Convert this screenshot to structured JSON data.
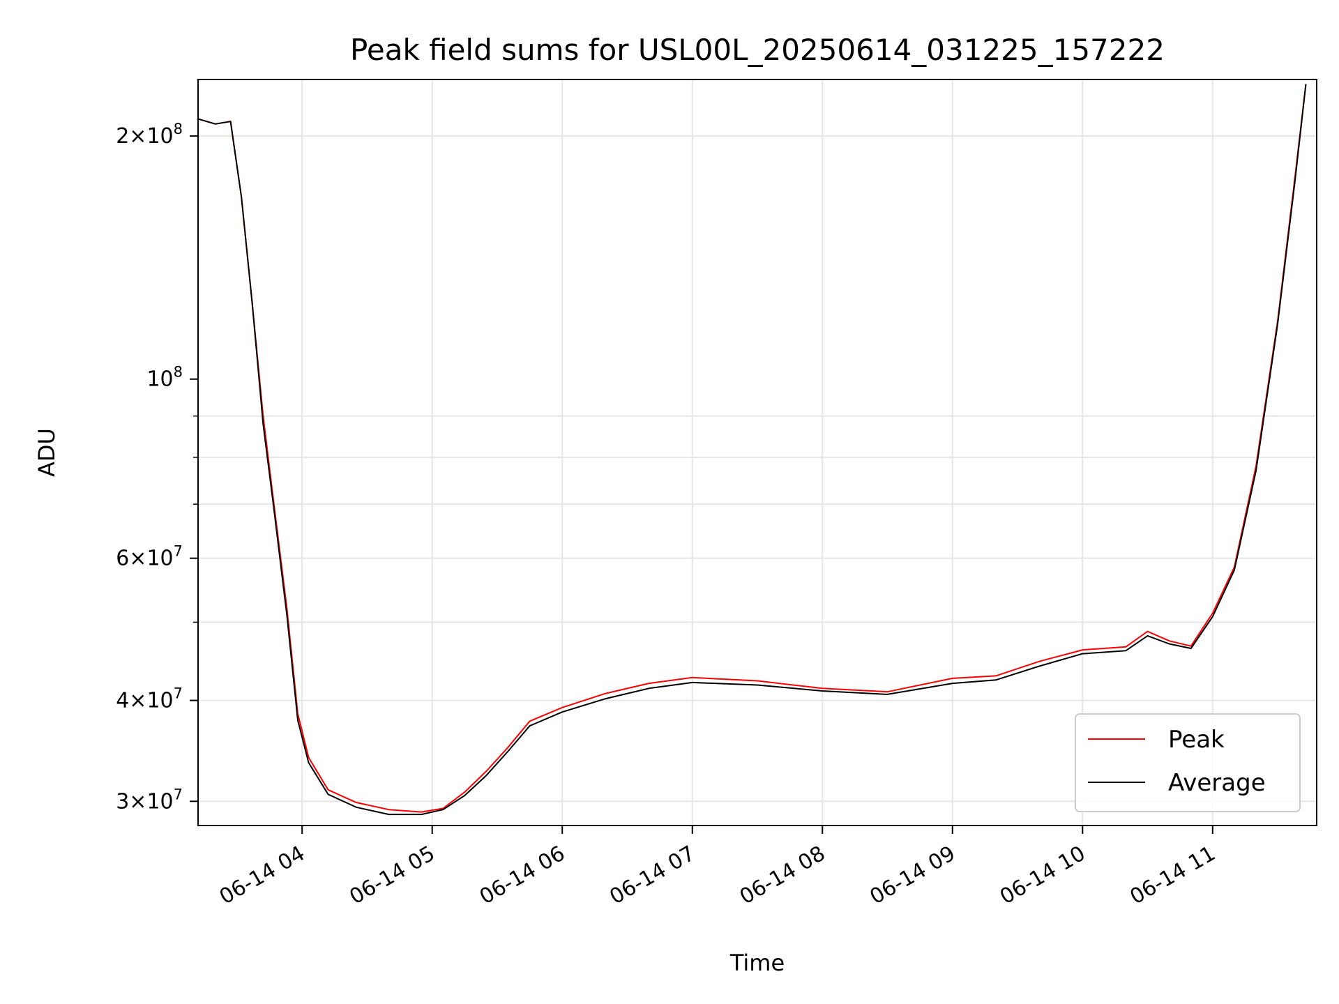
{
  "chart_data": {
    "type": "line",
    "title": "Peak field sums for USL00L_20250614_031225_157222",
    "xlabel": "Time",
    "ylabel": "ADU",
    "yscale": "log",
    "ylim": [
      28000000,
      235000000
    ],
    "xlim": [
      "2025-06-14 03:12",
      "2025-06-14 11:48"
    ],
    "grid": true,
    "legend_position": "lower right",
    "x_ticks": [
      {
        "t": "2025-06-14 04:00",
        "label": "06-14 04"
      },
      {
        "t": "2025-06-14 05:00",
        "label": "06-14 05"
      },
      {
        "t": "2025-06-14 06:00",
        "label": "06-14 06"
      },
      {
        "t": "2025-06-14 07:00",
        "label": "06-14 07"
      },
      {
        "t": "2025-06-14 08:00",
        "label": "06-14 08"
      },
      {
        "t": "2025-06-14 09:00",
        "label": "06-14 09"
      },
      {
        "t": "2025-06-14 10:00",
        "label": "06-14 10"
      },
      {
        "t": "2025-06-14 11:00",
        "label": "06-14 11"
      }
    ],
    "y_ticks": [
      {
        "value": 30000000,
        "mantissa": "3",
        "exponent": "7"
      },
      {
        "value": 40000000,
        "mantissa": "4",
        "exponent": "7"
      },
      {
        "value": 60000000,
        "mantissa": "6",
        "exponent": "7"
      },
      {
        "value": 100000000,
        "mantissa": "",
        "exponent": "8"
      },
      {
        "value": 200000000,
        "mantissa": "2",
        "exponent": "8"
      }
    ],
    "series": [
      {
        "name": "Peak",
        "color": "#ff0000",
        "points": [
          [
            "2025-06-14 03:12",
            210000000
          ],
          [
            "2025-06-14 03:20",
            207000000
          ],
          [
            "2025-06-14 03:27",
            208500000
          ],
          [
            "2025-06-14 03:32",
            168000000
          ],
          [
            "2025-06-14 03:37",
            124000000
          ],
          [
            "2025-06-14 03:42",
            90000000
          ],
          [
            "2025-06-14 03:47",
            70000000
          ],
          [
            "2025-06-14 03:53",
            52000000
          ],
          [
            "2025-06-14 03:58",
            38500000
          ],
          [
            "2025-06-14 04:03",
            34000000
          ],
          [
            "2025-06-14 04:12",
            31000000
          ],
          [
            "2025-06-14 04:25",
            29900000
          ],
          [
            "2025-06-14 04:40",
            29300000
          ],
          [
            "2025-06-14 04:55",
            29100000
          ],
          [
            "2025-06-14 05:05",
            29400000
          ],
          [
            "2025-06-14 05:15",
            30800000
          ],
          [
            "2025-06-14 05:25",
            32700000
          ],
          [
            "2025-06-14 05:35",
            35000000
          ],
          [
            "2025-06-14 05:45",
            37700000
          ],
          [
            "2025-06-14 06:00",
            39200000
          ],
          [
            "2025-06-14 06:20",
            40800000
          ],
          [
            "2025-06-14 06:40",
            42000000
          ],
          [
            "2025-06-14 07:00",
            42700000
          ],
          [
            "2025-06-14 07:30",
            42300000
          ],
          [
            "2025-06-14 08:00",
            41400000
          ],
          [
            "2025-06-14 08:30",
            41000000
          ],
          [
            "2025-06-14 09:00",
            42600000
          ],
          [
            "2025-06-14 09:20",
            42900000
          ],
          [
            "2025-06-14 09:40",
            44700000
          ],
          [
            "2025-06-14 10:00",
            46200000
          ],
          [
            "2025-06-14 10:20",
            46600000
          ],
          [
            "2025-06-14 10:30",
            48700000
          ],
          [
            "2025-06-14 10:40",
            47400000
          ],
          [
            "2025-06-14 10:50",
            46700000
          ],
          [
            "2025-06-14 11:00",
            51300000
          ],
          [
            "2025-06-14 11:10",
            58500000
          ],
          [
            "2025-06-14 11:20",
            78000000
          ],
          [
            "2025-06-14 11:30",
            118000000
          ],
          [
            "2025-06-14 11:38",
            178000000
          ],
          [
            "2025-06-14 11:43",
            232000000
          ]
        ]
      },
      {
        "name": "Average",
        "color": "#000000",
        "points": [
          [
            "2025-06-14 03:12",
            210000000
          ],
          [
            "2025-06-14 03:20",
            207000000
          ],
          [
            "2025-06-14 03:27",
            208500000
          ],
          [
            "2025-06-14 03:32",
            168000000
          ],
          [
            "2025-06-14 03:37",
            124000000
          ],
          [
            "2025-06-14 03:42",
            88000000
          ],
          [
            "2025-06-14 03:47",
            69000000
          ],
          [
            "2025-06-14 03:53",
            51000000
          ],
          [
            "2025-06-14 03:58",
            37800000
          ],
          [
            "2025-06-14 04:03",
            33500000
          ],
          [
            "2025-06-14 04:12",
            30600000
          ],
          [
            "2025-06-14 04:25",
            29500000
          ],
          [
            "2025-06-14 04:40",
            28900000
          ],
          [
            "2025-06-14 04:55",
            28900000
          ],
          [
            "2025-06-14 05:05",
            29300000
          ],
          [
            "2025-06-14 05:15",
            30500000
          ],
          [
            "2025-06-14 05:25",
            32300000
          ],
          [
            "2025-06-14 05:35",
            34600000
          ],
          [
            "2025-06-14 05:45",
            37200000
          ],
          [
            "2025-06-14 06:00",
            38700000
          ],
          [
            "2025-06-14 06:20",
            40200000
          ],
          [
            "2025-06-14 06:40",
            41400000
          ],
          [
            "2025-06-14 07:00",
            42100000
          ],
          [
            "2025-06-14 07:30",
            41800000
          ],
          [
            "2025-06-14 08:00",
            41100000
          ],
          [
            "2025-06-14 08:30",
            40700000
          ],
          [
            "2025-06-14 09:00",
            42000000
          ],
          [
            "2025-06-14 09:20",
            42400000
          ],
          [
            "2025-06-14 09:40",
            44100000
          ],
          [
            "2025-06-14 10:00",
            45700000
          ],
          [
            "2025-06-14 10:20",
            46100000
          ],
          [
            "2025-06-14 10:30",
            48100000
          ],
          [
            "2025-06-14 10:40",
            47000000
          ],
          [
            "2025-06-14 10:50",
            46400000
          ],
          [
            "2025-06-14 11:00",
            50800000
          ],
          [
            "2025-06-14 11:10",
            58000000
          ],
          [
            "2025-06-14 11:20",
            77000000
          ],
          [
            "2025-06-14 11:30",
            117000000
          ],
          [
            "2025-06-14 11:38",
            176000000
          ],
          [
            "2025-06-14 11:43",
            232000000
          ]
        ]
      }
    ]
  }
}
